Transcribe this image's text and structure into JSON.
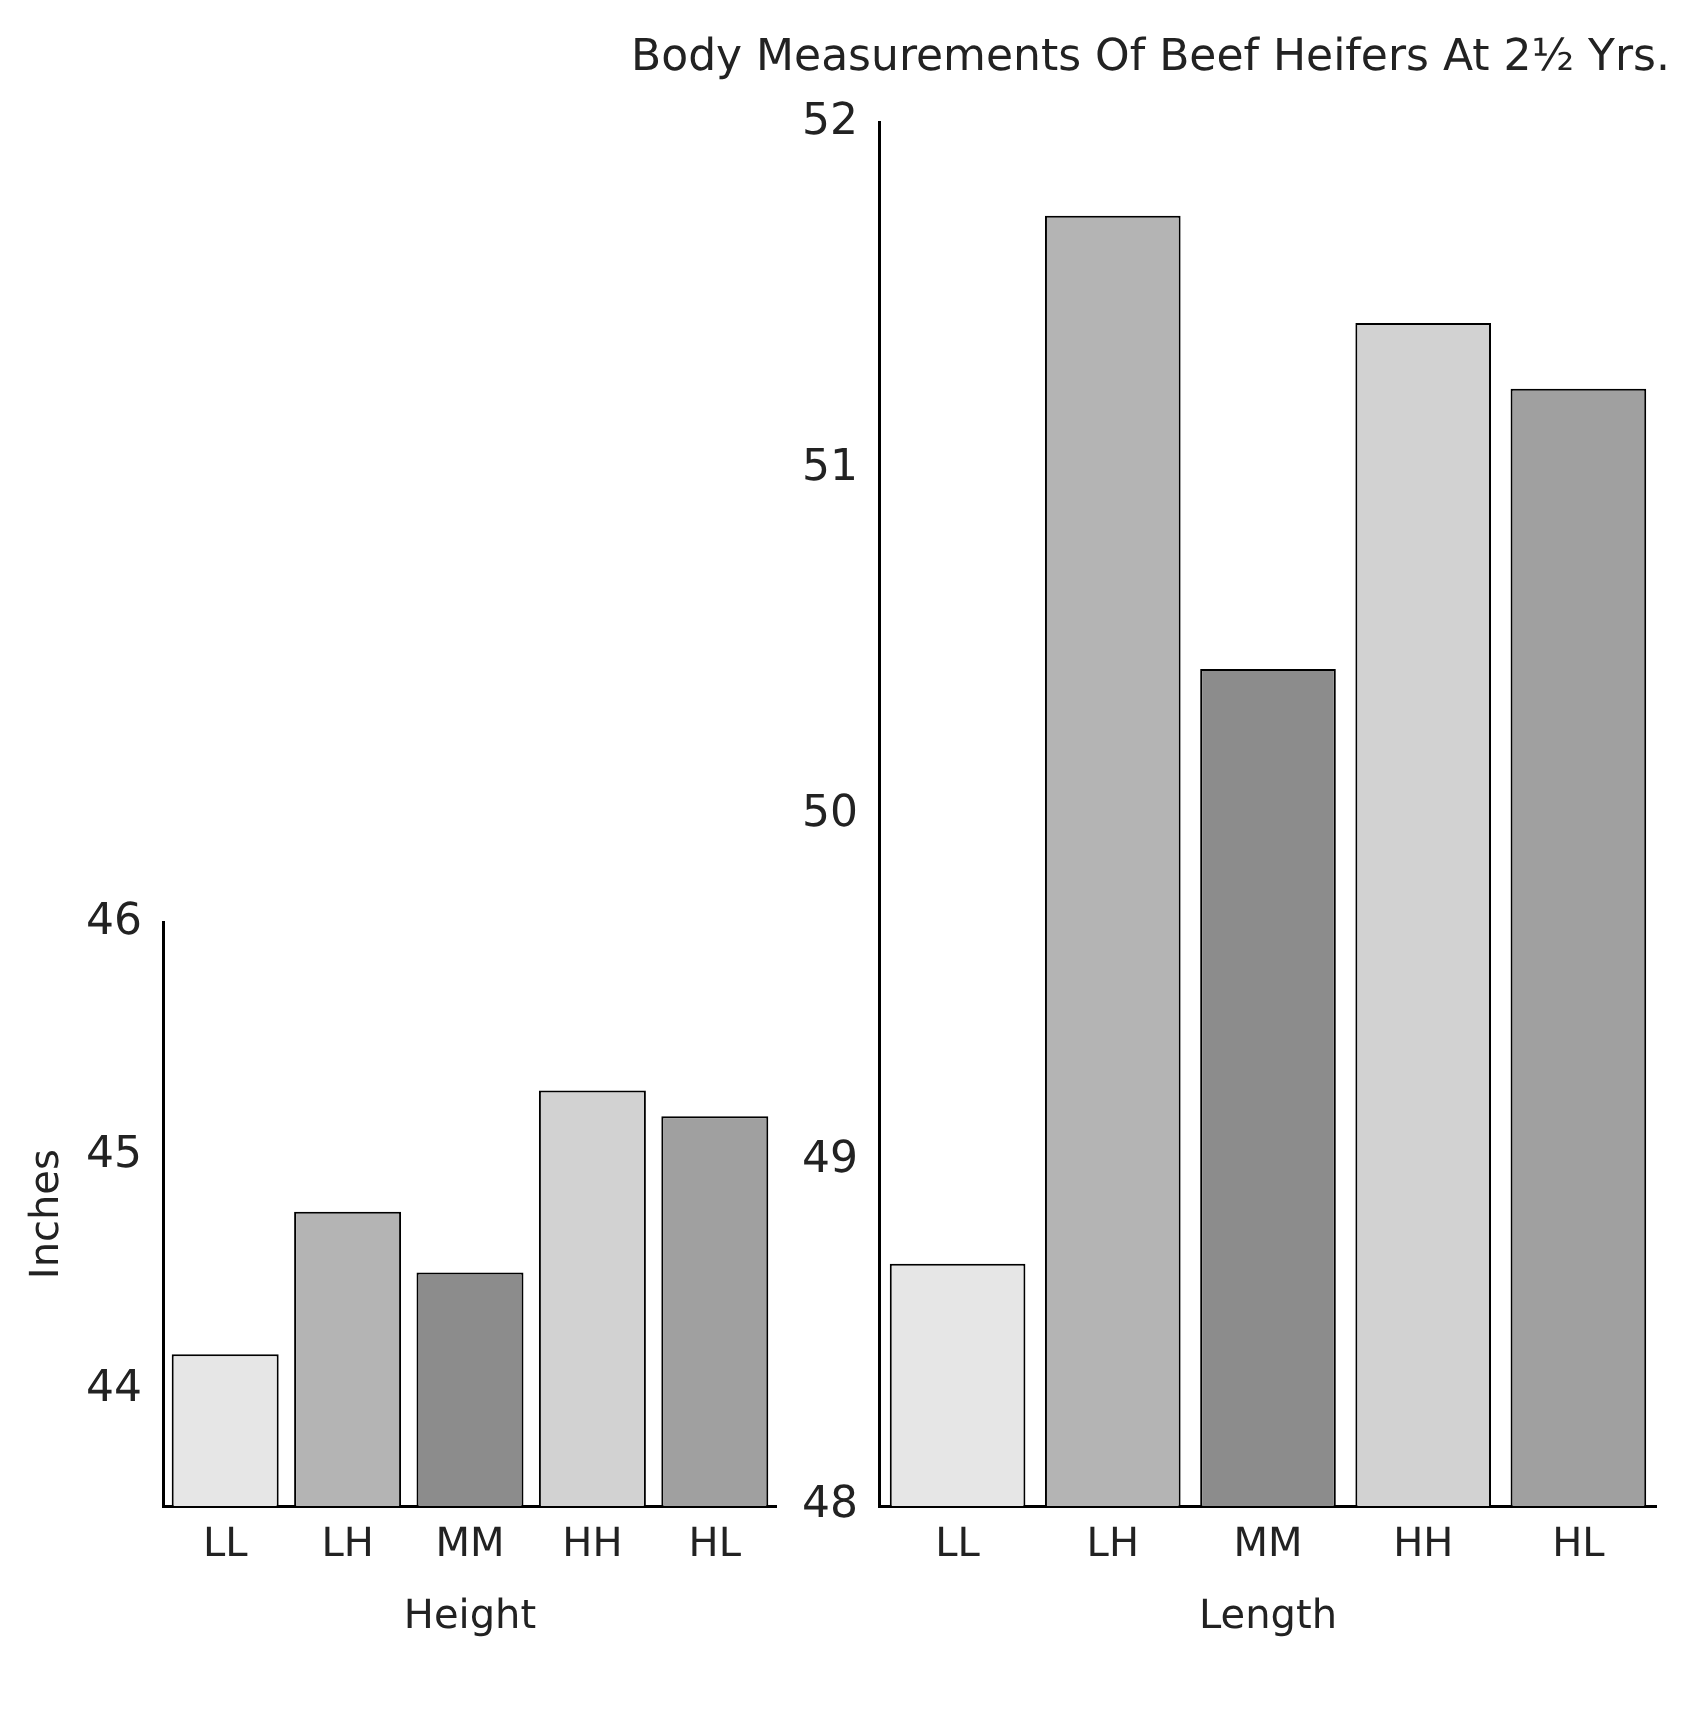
{
  "chart_data": [
    {
      "type": "bar",
      "title": "Body Measurements Of Beef Heifers At 2½ Yrs.",
      "ylabel": "Inches",
      "xlabel": "Height",
      "categories": [
        "LL",
        "LH",
        "MM",
        "HH",
        "HL"
      ],
      "values": [
        44.15,
        44.76,
        44.5,
        45.28,
        45.17
      ],
      "colors": [
        "#e6e6e6",
        "#b4b4b4",
        "#8c8c8c",
        "#d2d2d2",
        "#a0a0a0"
      ],
      "ylim": [
        43.5,
        46
      ],
      "yticks": [
        44,
        45,
        46
      ],
      "grid": false
    },
    {
      "type": "bar",
      "xlabel": "Length",
      "categories": [
        "LL",
        "LH",
        "MM",
        "HH",
        "HL"
      ],
      "values": [
        48.7,
        51.73,
        50.42,
        51.42,
        51.23
      ],
      "colors": [
        "#e6e6e6",
        "#b4b4b4",
        "#8c8c8c",
        "#d2d2d2",
        "#a0a0a0"
      ],
      "ylim": [
        48,
        52
      ],
      "yticks": [
        48,
        49,
        50,
        51,
        52
      ],
      "grid": false
    }
  ]
}
